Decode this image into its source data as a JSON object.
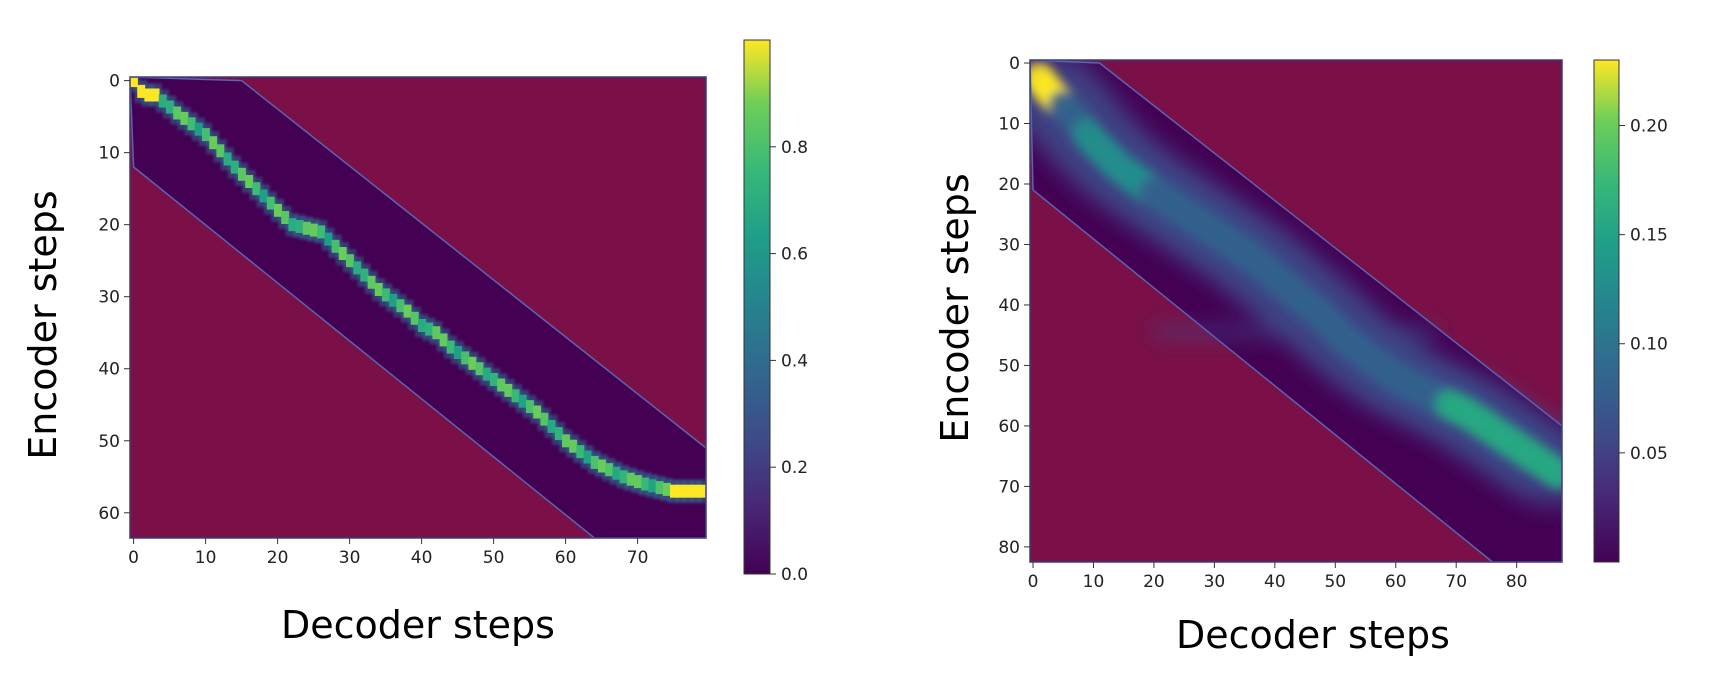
{
  "chart_data": [
    {
      "type": "heatmap",
      "title": "",
      "xlabel": "Decoder steps",
      "ylabel": "Encoder steps",
      "xlim": [
        -0.5,
        79.5
      ],
      "ylim": [
        -0.5,
        63.5
      ],
      "xticks": [
        0,
        10,
        20,
        30,
        40,
        50,
        60,
        70
      ],
      "yticks": [
        0,
        10,
        20,
        30,
        40,
        50,
        60
      ],
      "colorbar": {
        "min": 0.0,
        "max": 1.0,
        "ticks": [
          "0.0",
          "0.2",
          "0.4",
          "0.6",
          "0.8"
        ],
        "colormap": "viridis"
      },
      "band": {
        "upper_edge": [
          [
            15,
            0
          ],
          [
            79.5,
            51
          ]
        ],
        "lower_edge": [
          [
            0,
            12
          ],
          [
            64,
            63.5
          ]
        ]
      },
      "alignment_path": [
        [
          0,
          0
        ],
        [
          1,
          1.5
        ],
        [
          2,
          2
        ],
        [
          3,
          2
        ],
        [
          6,
          4.5
        ],
        [
          10,
          7.5
        ],
        [
          14,
          12
        ],
        [
          18,
          16
        ],
        [
          22,
          20
        ],
        [
          26,
          21
        ],
        [
          30,
          25
        ],
        [
          34,
          29
        ],
        [
          38,
          32
        ],
        [
          40,
          34
        ],
        [
          42,
          35
        ],
        [
          44,
          37
        ],
        [
          48,
          40
        ],
        [
          52,
          43
        ],
        [
          56,
          46
        ],
        [
          60,
          50
        ],
        [
          64,
          53
        ],
        [
          68,
          55
        ],
        [
          71,
          56
        ],
        [
          75,
          57
        ],
        [
          79,
          57
        ]
      ],
      "peak_value": 1.0,
      "masked_color": "#7a1047"
    },
    {
      "type": "heatmap",
      "title": "",
      "xlabel": "Decoder steps",
      "ylabel": "Encoder steps",
      "xlim": [
        -0.5,
        87.5
      ],
      "ylim": [
        -0.5,
        82.5
      ],
      "xticks": [
        0,
        10,
        20,
        30,
        40,
        50,
        60,
        70,
        80
      ],
      "yticks": [
        0,
        10,
        20,
        30,
        40,
        50,
        60,
        70,
        80
      ],
      "colorbar": {
        "min": 0.0,
        "max": 0.23,
        "ticks": [
          "0.05",
          "0.10",
          "0.15",
          "0.20"
        ],
        "colormap": "viridis"
      },
      "band": {
        "upper_edge": [
          [
            11,
            0
          ],
          [
            87.5,
            60
          ]
        ],
        "lower_edge": [
          [
            0,
            21
          ],
          [
            76,
            82.5
          ]
        ]
      },
      "alignment_path": [
        [
          1,
          2.5
        ],
        [
          3,
          5
        ],
        [
          6,
          8
        ],
        [
          10,
          13
        ],
        [
          14,
          17
        ],
        [
          18,
          20
        ],
        [
          24,
          24
        ],
        [
          30,
          28
        ],
        [
          36,
          32
        ],
        [
          42,
          37
        ],
        [
          48,
          42
        ],
        [
          52,
          46
        ],
        [
          56,
          49
        ],
        [
          60,
          52
        ],
        [
          66,
          55
        ],
        [
          72,
          58
        ],
        [
          78,
          62
        ],
        [
          84,
          66
        ],
        [
          87,
          68
        ]
      ],
      "peak_value": 0.23,
      "masked_color": "#7a1047"
    }
  ]
}
